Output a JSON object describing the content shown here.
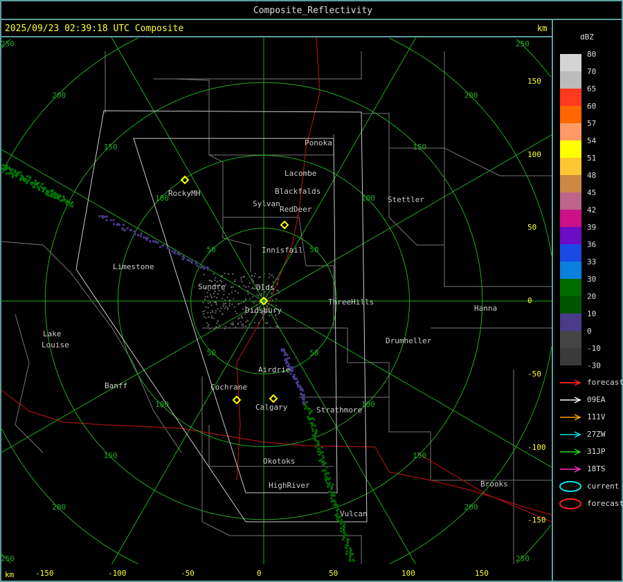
{
  "window": {
    "title": "Composite_Reflectivity"
  },
  "header": {
    "timestamp": "2025/09/23 02:39:18 UTC Composite",
    "unit_top": "km"
  },
  "axes": {
    "unit_bottom": "km",
    "x_ticks": [
      "-150",
      "-100",
      "-50",
      "0",
      "50",
      "100",
      "150"
    ],
    "y_ticks": [
      "150",
      "100",
      "50",
      "0",
      "-50",
      "-100",
      "-150"
    ]
  },
  "rings": {
    "color": "#22aa22",
    "labels": [
      "50",
      "100",
      "150",
      "200",
      "250"
    ]
  },
  "cities": [
    {
      "name": "Ponoka"
    },
    {
      "name": "Lacombe"
    },
    {
      "name": "Blackfalds"
    },
    {
      "name": "Sylvan"
    },
    {
      "name": "RedDeer"
    },
    {
      "name": "RockyMH"
    },
    {
      "name": "Stettler"
    },
    {
      "name": "Innisfail"
    },
    {
      "name": "Limestone"
    },
    {
      "name": "Sundre"
    },
    {
      "name": "Olds"
    },
    {
      "name": "Didsbury"
    },
    {
      "name": "ThreeHills"
    },
    {
      "name": "Hanna"
    },
    {
      "name": "Drumheller"
    },
    {
      "name": "Lake"
    },
    {
      "name": "Louise"
    },
    {
      "name": "Airdrie"
    },
    {
      "name": "Banff"
    },
    {
      "name": "Cochrane"
    },
    {
      "name": "Calgary"
    },
    {
      "name": "Strathmore"
    },
    {
      "name": "Okotoks"
    },
    {
      "name": "HighRiver"
    },
    {
      "name": "Brooks"
    },
    {
      "name": "Vulcan"
    }
  ],
  "legend": {
    "unit": "dBZ",
    "scale": [
      {
        "label": "80",
        "color": "#d4d4d4"
      },
      {
        "label": "70",
        "color": "#bcbcbc"
      },
      {
        "label": "65",
        "color": "#ff3a1f"
      },
      {
        "label": "60",
        "color": "#ff6600"
      },
      {
        "label": "57",
        "color": "#ff9966"
      },
      {
        "label": "54",
        "color": "#ffff00"
      },
      {
        "label": "51",
        "color": "#ffc533"
      },
      {
        "label": "48",
        "color": "#cc8844"
      },
      {
        "label": "45",
        "color": "#bb6688"
      },
      {
        "label": "42",
        "color": "#cc1188"
      },
      {
        "label": "39",
        "color": "#6c0cc6"
      },
      {
        "label": "36",
        "color": "#1a4ae6"
      },
      {
        "label": "33",
        "color": "#0a80dd"
      },
      {
        "label": "30",
        "color": "#006c00"
      },
      {
        "label": "20",
        "color": "#005500"
      },
      {
        "label": "10",
        "color": "#4a3a8a"
      },
      {
        "label": "0",
        "color": "#444444"
      },
      {
        "label": "-10",
        "color": "#3a3a3a"
      },
      {
        "label": "-30",
        "color": "#333333"
      }
    ],
    "tracks": [
      {
        "label": "forecast",
        "color": "#ff2222"
      },
      {
        "label": "09EA",
        "color": "#ffffff"
      },
      {
        "label": "111V",
        "color": "#ffa500"
      },
      {
        "label": "27ZW",
        "color": "#00e5ee"
      },
      {
        "label": "31JP",
        "color": "#22dd22"
      },
      {
        "label": "18TS",
        "color": "#ff33cc"
      }
    ],
    "cells": [
      {
        "label": "current",
        "color": "#00e5ee"
      },
      {
        "label": "forecast",
        "color": "#ff2222"
      }
    ]
  }
}
